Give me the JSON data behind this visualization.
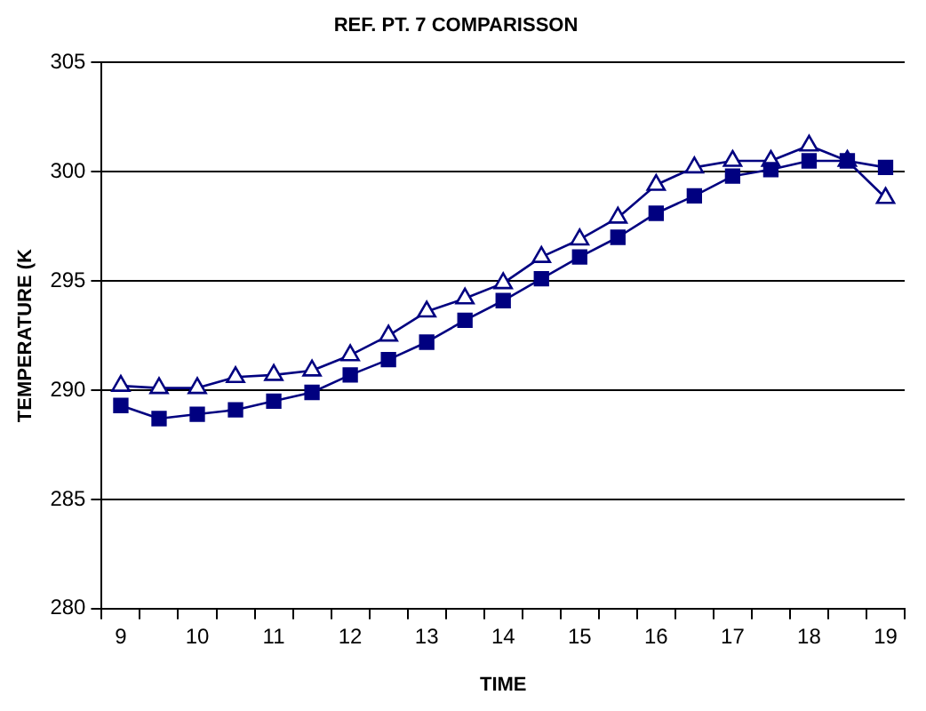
{
  "chart_data": {
    "type": "line",
    "title": "REF. PT. 7 COMPARISSON",
    "xlabel": "TIME",
    "ylabel": "TEMPERATURE (K",
    "categories": [
      "9",
      null,
      "10",
      null,
      "11",
      null,
      "12",
      null,
      "13",
      null,
      "14",
      null,
      "15",
      null,
      "16",
      null,
      "17",
      null,
      "18",
      null,
      "19"
    ],
    "series": [
      {
        "color": "#000080",
        "marker": "square",
        "values": [
          289.3,
          288.7,
          288.9,
          289.1,
          289.5,
          289.9,
          290.7,
          291.4,
          292.2,
          293.2,
          294.1,
          295.1,
          296.1,
          297.0,
          298.1,
          298.9,
          299.8,
          300.1,
          300.5,
          300.5,
          300.2
        ]
      },
      {
        "color": "#000080",
        "marker": "triangle",
        "values": [
          290.2,
          290.1,
          290.1,
          290.6,
          290.7,
          290.9,
          291.6,
          292.5,
          293.6,
          294.2,
          294.9,
          296.1,
          296.9,
          297.9,
          299.4,
          300.2,
          300.5,
          300.5,
          301.2,
          300.5,
          298.8
        ]
      }
    ],
    "ylim": [
      280,
      305
    ],
    "yticks": [
      280,
      285,
      290,
      295,
      300,
      305
    ],
    "grid": "y",
    "legend": false
  }
}
